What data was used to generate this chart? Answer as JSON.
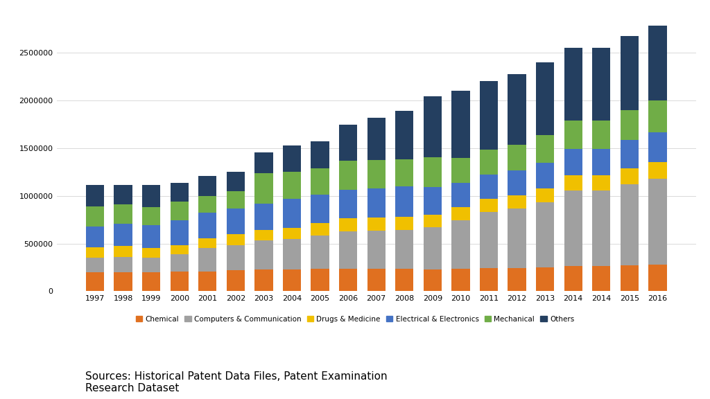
{
  "years": [
    "1997",
    "1998",
    "1999",
    "2000",
    "2001",
    "2002",
    "2003",
    "2004",
    "2005",
    "2006",
    "2007",
    "2008",
    "2009",
    "2010",
    "2011",
    "2012",
    "2013",
    "2014",
    "2014",
    "2015",
    "2016"
  ],
  "x_labels": [
    "1997",
    "1998",
    "1999",
    "2000",
    "2001",
    "2002",
    "2003",
    "2004",
    "2005",
    "2006",
    "2007",
    "2008",
    "2009",
    "2010",
    "2011",
    "2012",
    "2013",
    "2014",
    "2014",
    "2015",
    "2016"
  ],
  "categories": [
    "Chemical",
    "Computers & Communication",
    "Drugs & Medicine",
    "Electrical & Electronics",
    "Mechanical",
    "Others"
  ],
  "colors": [
    "#E07020",
    "#A0A0A0",
    "#F0C000",
    "#4472C4",
    "#70AD47",
    "#243F60"
  ],
  "data": {
    "Chemical": [
      200000,
      200000,
      200000,
      210000,
      205000,
      220000,
      230000,
      230000,
      235000,
      235000,
      235000,
      235000,
      230000,
      235000,
      240000,
      245000,
      250000,
      265000,
      265000,
      270000,
      280000
    ],
    "Computers & Communication": [
      155000,
      160000,
      155000,
      175000,
      250000,
      265000,
      300000,
      315000,
      350000,
      395000,
      400000,
      410000,
      440000,
      510000,
      590000,
      620000,
      680000,
      790000,
      790000,
      850000,
      900000
    ],
    "Drugs & Medicine": [
      105000,
      115000,
      100000,
      100000,
      100000,
      115000,
      115000,
      120000,
      130000,
      135000,
      135000,
      135000,
      130000,
      135000,
      135000,
      140000,
      150000,
      160000,
      160000,
      165000,
      175000
    ],
    "Electrical & Electronics": [
      215000,
      230000,
      235000,
      255000,
      265000,
      270000,
      275000,
      300000,
      300000,
      300000,
      310000,
      320000,
      295000,
      255000,
      255000,
      260000,
      265000,
      275000,
      275000,
      300000,
      310000
    ],
    "Mechanical": [
      215000,
      205000,
      195000,
      200000,
      175000,
      175000,
      320000,
      290000,
      275000,
      305000,
      295000,
      280000,
      310000,
      265000,
      265000,
      270000,
      290000,
      300000,
      300000,
      310000,
      335000
    ],
    "Others": [
      220000,
      200000,
      225000,
      195000,
      210000,
      205000,
      215000,
      275000,
      280000,
      375000,
      440000,
      510000,
      640000,
      700000,
      720000,
      740000,
      760000,
      760000,
      760000,
      775000,
      780000
    ]
  },
  "ylim": [
    0,
    2800000
  ],
  "yticks": [
    0,
    500000,
    1000000,
    1500000,
    2000000,
    2500000
  ],
  "source_text": "Sources: Historical Patent Data Files, Patent Examination\nResearch Dataset",
  "background_color": "#FFFFFF",
  "grid_color": "#D3D3D3"
}
